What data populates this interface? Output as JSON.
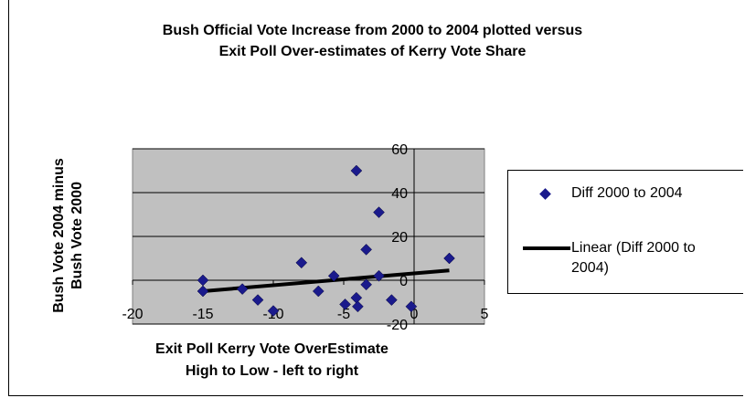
{
  "chart_data": {
    "type": "scatter",
    "title_line1": "Bush Official Vote Increase from 2000 to 2004 plotted versus",
    "title_line2": "Exit Poll Over-estimates of Kerry Vote Share",
    "ylabel_line1": "Bush Vote 2004 minus",
    "ylabel_line2": "Bush Vote 2000",
    "xlabel_line1": "Exit Poll Kerry Vote OverEstimate",
    "xlabel_line2": "High to Low - left to right",
    "xlim": [
      -20,
      5
    ],
    "ylim": [
      -20,
      60
    ],
    "x_ticks": [
      -20,
      -15,
      -10,
      -5,
      0,
      5
    ],
    "y_ticks": [
      -20,
      0,
      20,
      40,
      60
    ],
    "x_tick_labels": [
      "-20",
      "-15",
      "-10",
      "-5",
      "0",
      "5"
    ],
    "y_tick_labels": [
      "-20",
      "0",
      "20",
      "40",
      "60"
    ],
    "grid": "horizontal",
    "plot_background": "#c0c0c0",
    "legend_position": "right",
    "series": [
      {
        "name": "Diff 2000 to 2004",
        "marker": "diamond",
        "color": "#1a1a8c",
        "points": [
          {
            "x": -15,
            "y": 0
          },
          {
            "x": -15,
            "y": -5
          },
          {
            "x": -12.2,
            "y": -4
          },
          {
            "x": -11.1,
            "y": -9
          },
          {
            "x": -10,
            "y": -14
          },
          {
            "x": -8,
            "y": 8
          },
          {
            "x": -6.8,
            "y": -5
          },
          {
            "x": -5.7,
            "y": 2
          },
          {
            "x": -4.9,
            "y": -11
          },
          {
            "x": -4.1,
            "y": 50
          },
          {
            "x": -4.1,
            "y": -8
          },
          {
            "x": -4,
            "y": -12
          },
          {
            "x": -3.4,
            "y": 14
          },
          {
            "x": -3.4,
            "y": -2
          },
          {
            "x": -2.5,
            "y": 31
          },
          {
            "x": -2.5,
            "y": 2
          },
          {
            "x": -1.6,
            "y": -9
          },
          {
            "x": -0.2,
            "y": -12
          },
          {
            "x": 2.5,
            "y": 10
          }
        ]
      },
      {
        "name": "Linear (Diff 2000 to 2004)",
        "type": "trendline",
        "color": "#000000",
        "x": [
          -15,
          2.5
        ],
        "y": [
          -5,
          4.5
        ]
      }
    ]
  }
}
